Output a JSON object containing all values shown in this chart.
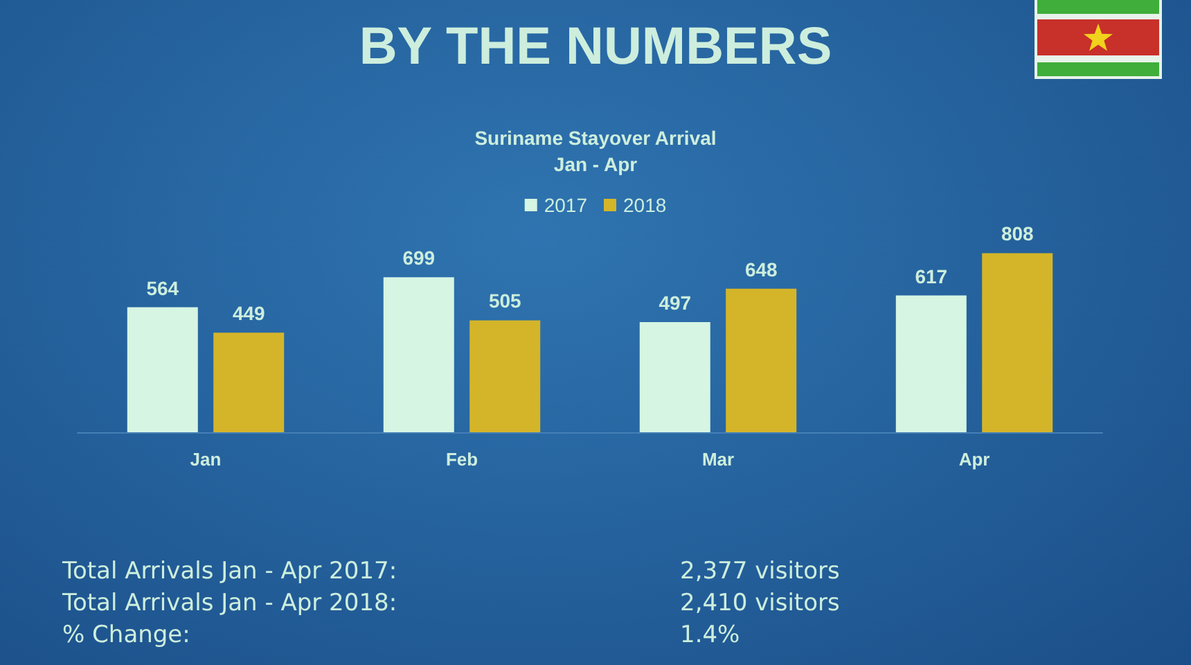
{
  "chart_data": {
    "type": "bar",
    "title": "BY THE NUMBERS",
    "subtitle": "Suriname Stayover Arrival\nJan - Apr",
    "categories": [
      "Jan",
      "Feb",
      "Mar",
      "Apr"
    ],
    "series": [
      {
        "name": "2017",
        "color": "#d6f5e3",
        "values": [
          564,
          699,
          497,
          617
        ]
      },
      {
        "name": "2018",
        "color": "#d4b52a",
        "values": [
          449,
          505,
          648,
          808
        ]
      }
    ],
    "data_labels": true,
    "legend": "top",
    "tick_labels": "x",
    "annotations": [
      "Total Arrivals Jan - Apr 2017:",
      "2,377 visitors",
      "Total Arrivals Jan - Apr 2018:",
      "2,410 visitors",
      "% Change:",
      "1.4%"
    ]
  }
}
